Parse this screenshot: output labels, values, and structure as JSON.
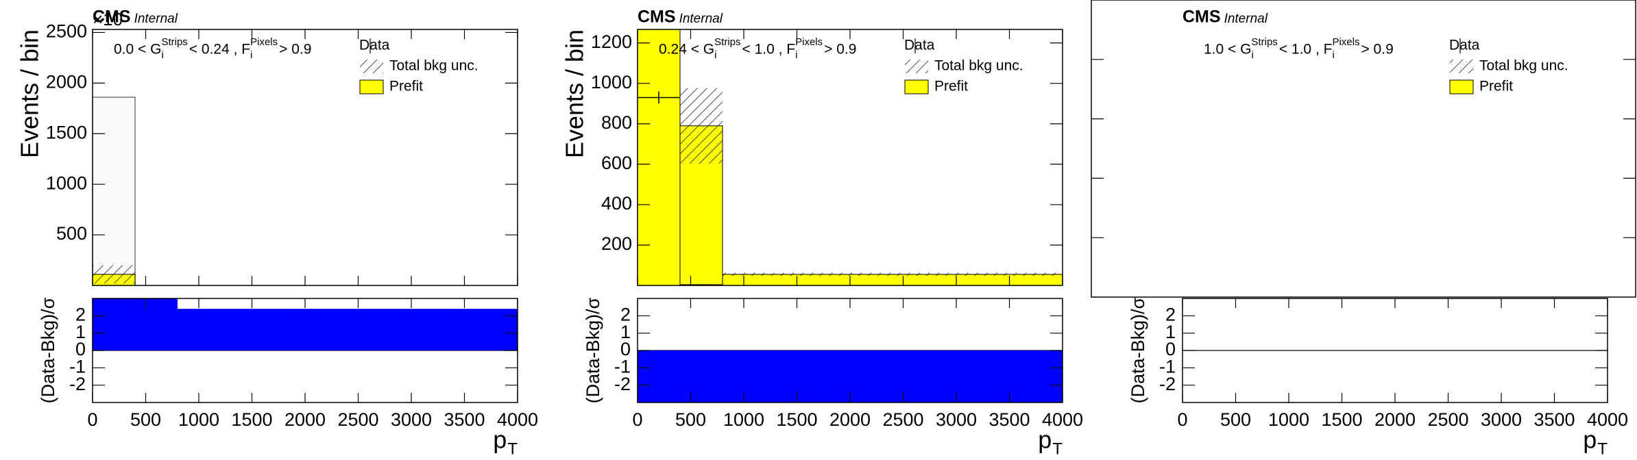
{
  "chart_data": [
    {
      "type": "cms_histogram",
      "cms_label": "CMS",
      "internal_label": "Internal",
      "y_exponent": "×10",
      "selection": [
        {
          "text": "0.0 < G"
        },
        {
          "text": "i",
          "pos": "sub"
        },
        {
          "text": "Strips",
          "pos": "sup"
        },
        {
          "text": " < 0.24 , F"
        },
        {
          "text": "i",
          "pos": "sub"
        },
        {
          "text": "Pixels",
          "pos": "sup"
        },
        {
          "text": " > 0.9"
        }
      ],
      "legend": [
        {
          "name": "Data",
          "kind": "data"
        },
        {
          "name": "Total bkg unc.",
          "kind": "hatch"
        },
        {
          "name": "Prefit",
          "kind": "fill",
          "color": "#ffff00"
        }
      ],
      "main": {
        "y_label": "Events / bin",
        "bins": [
          0,
          400,
          800,
          4000
        ],
        "outline_values": [
          1860,
          0,
          0
        ],
        "prefit": [
          110,
          0,
          0
        ],
        "bkg_unc": [
          90,
          0,
          0
        ],
        "prefit_color": "#ffff00",
        "outline_color": "#fafafa",
        "ylim": [
          0,
          2530
        ],
        "yticks": [
          500,
          1000,
          1500,
          2000,
          2500
        ],
        "ytick_labels": true
      },
      "ratio": {
        "y_label": "(Data-Bkg)/σ",
        "x_label": "p",
        "x_label_sub": "T",
        "bins": [
          0,
          400,
          800,
          4000
        ],
        "values": [
          3,
          3,
          2.4
        ],
        "color": "#0000ff",
        "xlim": [
          0,
          4000
        ],
        "xticks": [
          0,
          500,
          1000,
          1500,
          2000,
          2500,
          3000,
          3500,
          4000
        ],
        "ylim": [
          -3,
          3
        ],
        "yticks": [
          -2,
          -1,
          0,
          1,
          2
        ]
      }
    },
    {
      "type": "cms_histogram",
      "cms_label": "CMS",
      "internal_label": "Internal",
      "selection": [
        {
          "text": "0.24 < G"
        },
        {
          "text": "i",
          "pos": "sub"
        },
        {
          "text": "Strips",
          "pos": "sup"
        },
        {
          "text": " < 1.0 , F"
        },
        {
          "text": "i",
          "pos": "sub"
        },
        {
          "text": "Pixels",
          "pos": "sup"
        },
        {
          "text": " > 0.9"
        }
      ],
      "legend": [
        {
          "name": "Data",
          "kind": "data"
        },
        {
          "name": "Total bkg unc.",
          "kind": "hatch"
        },
        {
          "name": "Prefit",
          "kind": "fill",
          "color": "#ffff00"
        }
      ],
      "main": {
        "y_label": "Events / bin",
        "bins": [
          0,
          400,
          800,
          4000
        ],
        "prefit": [
          1500,
          790,
          55
        ],
        "bkg_unc": [
          0,
          187,
          8
        ],
        "data": [
          930,
          3,
          null
        ],
        "data_err": [
          30,
          3,
          null
        ],
        "prefit_color": "#ffff00",
        "ylim": [
          0,
          1267
        ],
        "yticks": [
          200,
          400,
          600,
          800,
          1000,
          1200
        ],
        "ytick_labels": true
      },
      "ratio": {
        "y_label": "(Data-Bkg)/σ",
        "x_label": "p",
        "x_label_sub": "T",
        "bins": [
          0,
          400,
          800,
          4000
        ],
        "values": [
          -3,
          -3,
          -3
        ],
        "color": "#0000ff",
        "xlim": [
          0,
          4000
        ],
        "xticks": [
          0,
          500,
          1000,
          1500,
          2000,
          2500,
          3000,
          3500,
          4000
        ],
        "ylim": [
          -3,
          3
        ],
        "yticks": [
          -2,
          -1,
          0,
          1,
          2
        ]
      }
    },
    {
      "type": "cms_histogram",
      "cms_label": "CMS",
      "internal_label": "Internal",
      "selection": [
        {
          "text": "1.0 < G"
        },
        {
          "text": "i",
          "pos": "sub"
        },
        {
          "text": "Strips",
          "pos": "sup"
        },
        {
          "text": " < 1.0 , F"
        },
        {
          "text": "i",
          "pos": "sub"
        },
        {
          "text": "Pixels",
          "pos": "sup"
        },
        {
          "text": " > 0.9"
        }
      ],
      "legend": [
        {
          "name": "Data",
          "kind": "data"
        },
        {
          "name": "Total bkg unc.",
          "kind": "hatch"
        },
        {
          "name": "Prefit",
          "kind": "fill",
          "color": "#ffff00"
        }
      ],
      "main": {
        "ylim": [
          0,
          1
        ],
        "yticks": [
          0.2,
          0.4,
          0.6,
          0.8
        ],
        "ytick_labels": false
      },
      "ratio": {
        "y_label": "(Data-Bkg)/σ",
        "x_label": "p",
        "x_label_sub": "T",
        "bins": [
          0,
          400,
          800,
          4000
        ],
        "values": [
          0,
          0,
          0
        ],
        "color": "#0000ff",
        "xlim": [
          0,
          4000
        ],
        "xticks": [
          0,
          500,
          1000,
          1500,
          2000,
          2500,
          3000,
          3500,
          4000
        ],
        "ylim": [
          -3,
          3
        ],
        "yticks": [
          -2,
          -1,
          0,
          1,
          2
        ]
      }
    }
  ]
}
